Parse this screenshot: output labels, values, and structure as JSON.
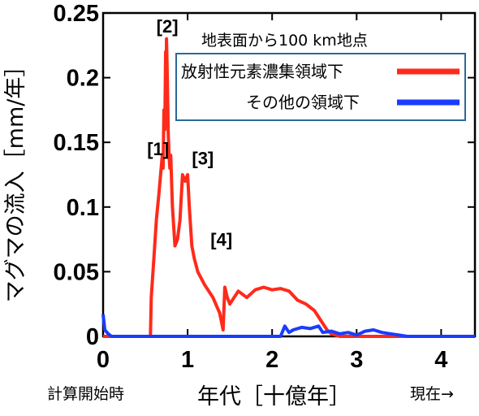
{
  "chart_data": {
    "type": "line",
    "xlabel": "年代［十億年］",
    "ylabel": "マグマの流入［mm/年］",
    "xlim": [
      0,
      4.4
    ],
    "ylim": [
      0,
      0.25
    ],
    "xticks": [
      "0",
      "1",
      "2",
      "3",
      "4"
    ],
    "yticks": [
      "0",
      "0.05",
      "0.1",
      "0.15",
      "0.2",
      "0.25"
    ],
    "x_start_note": "計算開始時",
    "x_end_note": "現在→",
    "legend": {
      "title": "地表面から100 km地点",
      "position": "top-right"
    },
    "annotations": [
      {
        "label": "[1]",
        "x": 0.65,
        "y": 0.14
      },
      {
        "label": "[2]",
        "x": 0.76,
        "y": 0.235
      },
      {
        "label": "[3]",
        "x": 1.18,
        "y": 0.133
      },
      {
        "label": "[4]",
        "x": 1.4,
        "y": 0.07
      }
    ],
    "series": [
      {
        "name": "放射性元素濃集領域下",
        "color": "#ff2a1a",
        "x": [
          0,
          0.56,
          0.57,
          0.6,
          0.63,
          0.66,
          0.68,
          0.7,
          0.71,
          0.72,
          0.73,
          0.74,
          0.745,
          0.75,
          0.76,
          0.77,
          0.78,
          0.79,
          0.8,
          0.82,
          0.85,
          0.88,
          0.91,
          0.94,
          0.97,
          1.0,
          1.02,
          1.05,
          1.08,
          1.12,
          1.2,
          1.3,
          1.38,
          1.42,
          1.44,
          1.47,
          1.5,
          1.6,
          1.7,
          1.8,
          1.9,
          2.0,
          2.1,
          2.2,
          2.3,
          2.4,
          2.5,
          2.55,
          2.6,
          2.65,
          2.7,
          2.75,
          2.8,
          4.4
        ],
        "y": [
          0,
          0,
          0.03,
          0.06,
          0.09,
          0.11,
          0.125,
          0.14,
          0.13,
          0.175,
          0.16,
          0.22,
          0.19,
          0.23,
          0.2,
          0.16,
          0.14,
          0.13,
          0.14,
          0.1,
          0.07,
          0.075,
          0.09,
          0.125,
          0.12,
          0.125,
          0.1,
          0.07,
          0.06,
          0.05,
          0.04,
          0.03,
          0.018,
          0.005,
          0.038,
          0.03,
          0.025,
          0.035,
          0.03,
          0.036,
          0.038,
          0.036,
          0.037,
          0.035,
          0.028,
          0.025,
          0.02,
          0.015,
          0.01,
          0.005,
          0.002,
          0.001,
          0,
          0
        ]
      },
      {
        "name": "その他の領域下",
        "color": "#1a3cff",
        "x": [
          0,
          0.02,
          0.06,
          0.1,
          0.5,
          2.1,
          2.15,
          2.2,
          2.25,
          2.35,
          2.45,
          2.55,
          2.6,
          2.7,
          2.8,
          2.9,
          3.0,
          3.1,
          3.2,
          3.3,
          3.4,
          3.5,
          3.6,
          4.4
        ],
        "y": [
          0.017,
          0.005,
          0.002,
          0,
          0,
          0,
          0.008,
          0.003,
          0.005,
          0.007,
          0.006,
          0.008,
          0.003,
          0.004,
          0.002,
          0.003,
          0.001,
          0.004,
          0.005,
          0.003,
          0.002,
          0.001,
          0,
          0
        ]
      }
    ]
  }
}
